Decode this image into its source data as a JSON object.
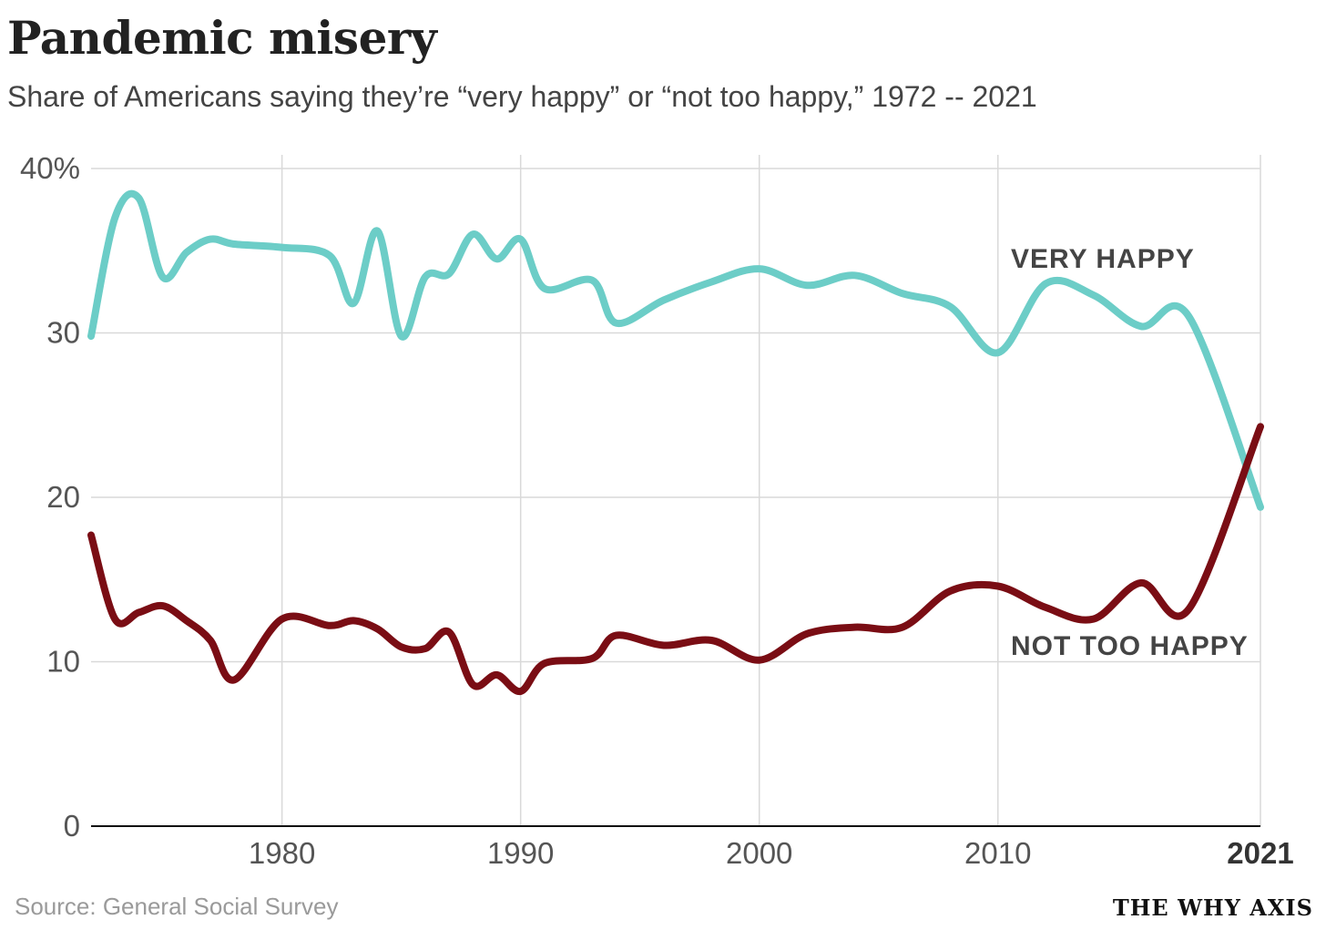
{
  "header": {
    "title": "Pandemic misery",
    "subtitle": "Share of Americans saying they’re “very happy” or “not too happy,” 1972 -- 2021"
  },
  "footer": {
    "source": "Source: General Social Survey",
    "brand": "THE WHY AXIS"
  },
  "chart_data": {
    "type": "line",
    "title": "Pandemic misery",
    "xlabel": "",
    "ylabel": "",
    "xlim": [
      1972,
      2021
    ],
    "ylim": [
      0,
      40
    ],
    "y_ticks": [
      0,
      10,
      20,
      30,
      40
    ],
    "y_tick_labels": [
      "0",
      "10",
      "20",
      "30",
      "40%"
    ],
    "x_ticks": [
      1980,
      1990,
      2000,
      2010,
      2021
    ],
    "x_tick_labels": [
      "1980",
      "1990",
      "2000",
      "2010",
      "2021"
    ],
    "grid": true,
    "series": [
      {
        "name": "VERY HAPPY",
        "color": "#6ccdc7",
        "x": [
          1972,
          1973,
          1974,
          1975,
          1976,
          1977,
          1978,
          1980,
          1982,
          1983,
          1984,
          1985,
          1986,
          1987,
          1988,
          1989,
          1990,
          1991,
          1993,
          1994,
          1996,
          1998,
          2000,
          2002,
          2004,
          2006,
          2008,
          2010,
          2012,
          2014,
          2016,
          2018,
          2021
        ],
        "values": [
          29.8,
          37.0,
          38.2,
          33.4,
          34.9,
          35.7,
          35.4,
          35.2,
          34.7,
          31.8,
          36.2,
          29.8,
          33.4,
          33.6,
          36.0,
          34.5,
          35.7,
          32.7,
          33.2,
          30.6,
          32.0,
          33.1,
          33.9,
          32.9,
          33.5,
          32.4,
          31.6,
          28.8,
          33.0,
          32.3,
          30.4,
          31.0,
          19.4
        ]
      },
      {
        "name": "NOT TOO HAPPY",
        "color": "#7a0d14",
        "x": [
          1972,
          1973,
          1974,
          1975,
          1976,
          1977,
          1978,
          1980,
          1982,
          1983,
          1984,
          1985,
          1986,
          1987,
          1988,
          1989,
          1990,
          1991,
          1993,
          1994,
          1996,
          1998,
          2000,
          2002,
          2004,
          2006,
          2008,
          2010,
          2012,
          2014,
          2016,
          2018,
          2021
        ],
        "values": [
          17.7,
          12.6,
          13.0,
          13.4,
          12.5,
          11.3,
          8.9,
          12.6,
          12.2,
          12.5,
          12.0,
          10.9,
          10.8,
          11.8,
          8.6,
          9.2,
          8.2,
          9.9,
          10.2,
          11.6,
          11.0,
          11.3,
          10.1,
          11.7,
          12.1,
          12.1,
          14.3,
          14.6,
          13.3,
          12.6,
          14.8,
          13.2,
          24.3
        ]
      }
    ]
  }
}
